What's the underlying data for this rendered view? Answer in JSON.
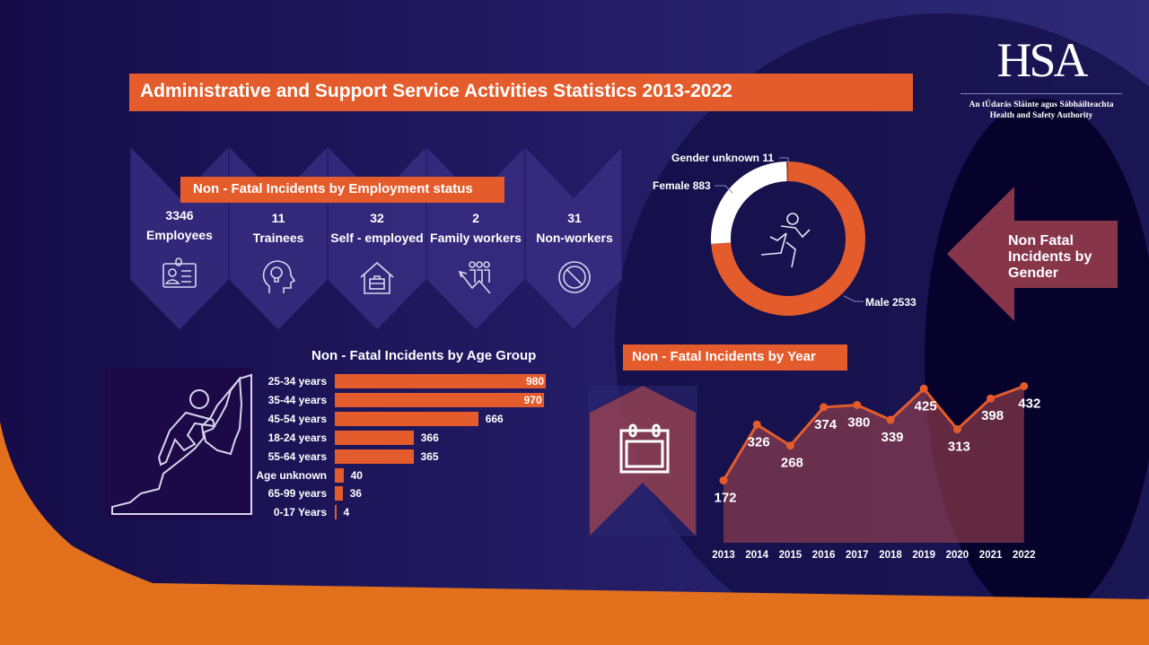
{
  "title": "Administrative and Support Service Activities Statistics 2013-2022",
  "logo": {
    "mark": "HSA",
    "line1": "An tÚdarás Sláinte agus Sábháilteachta",
    "line2": "Health and Safety Authority"
  },
  "colors": {
    "accent": "#e45c2c",
    "background": "#221a62",
    "white": "#ffffff"
  },
  "employment": {
    "title": "Non - Fatal Incidents by Employment status",
    "items": [
      {
        "value": "3346",
        "label": "Employees",
        "icon": "id-badge-icon"
      },
      {
        "value": "11",
        "label": "Trainees",
        "icon": "head-lightbulb-icon"
      },
      {
        "value": "32",
        "label": "Self - employed",
        "icon": "house-briefcase-icon"
      },
      {
        "value": "2",
        "label": "Family workers",
        "icon": "family-growth-icon"
      },
      {
        "value": "31",
        "label": "Non-workers",
        "icon": "prohibited-icon"
      }
    ]
  },
  "chart_data": [
    {
      "type": "pie",
      "donut": true,
      "title": "Non Fatal Incidents by Gender",
      "slices": [
        {
          "label": "Male",
          "value": 2533,
          "text": "Male 2533",
          "color": "#e45c2c"
        },
        {
          "label": "Female",
          "value": 883,
          "text": "Female 883",
          "color": "#ffffff"
        },
        {
          "label": "Gender unknown",
          "value": 11,
          "text": "Gender unknown 11",
          "color": "#8a3a2a"
        }
      ]
    },
    {
      "type": "bar",
      "orientation": "horizontal",
      "title": "Non - Fatal Incidents by Age Group",
      "categories": [
        "25-34 years",
        "35-44 years",
        "45-54 years",
        "18-24 years",
        "55-64 years",
        "Age unknown",
        "65-99 years",
        "0-17 Years"
      ],
      "values": [
        980,
        970,
        666,
        366,
        365,
        40,
        36,
        4
      ],
      "color": "#e45c2c"
    },
    {
      "type": "area",
      "title": "Non - Fatal Incidents by Year",
      "x": [
        "2013",
        "2014",
        "2015",
        "2016",
        "2017",
        "2018",
        "2019",
        "2020",
        "2021",
        "2022"
      ],
      "values": [
        172,
        326,
        268,
        374,
        380,
        339,
        425,
        313,
        398,
        432
      ],
      "ylim": [
        0,
        432
      ],
      "grid": false,
      "line_color": "#e45c2c"
    }
  ]
}
